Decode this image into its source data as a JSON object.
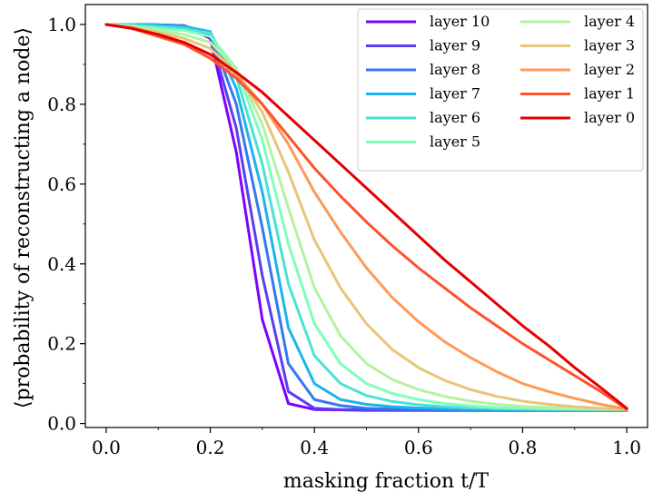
{
  "chart_data": {
    "type": "line",
    "title": "",
    "xlabel": "masking fraction t/T",
    "ylabel": "⟨probability of reconstructing a node⟩",
    "xlim": [
      -0.04,
      1.04
    ],
    "ylim": [
      -0.01,
      1.05
    ],
    "xticks": [
      "0.0",
      "0.2",
      "0.4",
      "0.6",
      "0.8",
      "1.0"
    ],
    "yticks": [
      "0.0",
      "0.2",
      "0.4",
      "0.6",
      "0.8",
      "1.0"
    ],
    "grid": false,
    "legend_position": "top-right",
    "x": [
      0.0,
      0.05,
      0.1,
      0.15,
      0.2,
      0.25,
      0.3,
      0.35,
      0.4,
      0.45,
      0.5,
      0.55,
      0.6,
      0.65,
      0.7,
      0.75,
      0.8,
      0.85,
      0.9,
      0.95,
      1.0
    ],
    "series": [
      {
        "name": "layer 10",
        "color": "#7f00ff",
        "values": [
          1.0,
          1.0,
          0.999,
          0.997,
          0.965,
          0.68,
          0.26,
          0.05,
          0.035,
          0.034,
          0.033,
          0.033,
          0.033,
          0.033,
          0.033,
          0.033,
          0.033,
          0.033,
          0.033,
          0.033,
          0.033
        ]
      },
      {
        "name": "layer 9",
        "color": "#5a3df4",
        "values": [
          1.0,
          1.0,
          0.999,
          0.997,
          0.972,
          0.74,
          0.37,
          0.08,
          0.038,
          0.035,
          0.034,
          0.033,
          0.033,
          0.033,
          0.033,
          0.033,
          0.033,
          0.033,
          0.033,
          0.033,
          0.033
        ]
      },
      {
        "name": "layer 8",
        "color": "#3478f0",
        "values": [
          1.0,
          1.0,
          0.999,
          0.996,
          0.978,
          0.8,
          0.49,
          0.15,
          0.06,
          0.045,
          0.038,
          0.036,
          0.035,
          0.035,
          0.034,
          0.034,
          0.034,
          0.034,
          0.034,
          0.034,
          0.034
        ]
      },
      {
        "name": "layer 7",
        "color": "#1ab6e8",
        "values": [
          1.0,
          1.0,
          0.998,
          0.995,
          0.982,
          0.84,
          0.58,
          0.24,
          0.1,
          0.06,
          0.048,
          0.042,
          0.039,
          0.037,
          0.036,
          0.035,
          0.035,
          0.035,
          0.035,
          0.035,
          0.035
        ]
      },
      {
        "name": "layer 6",
        "color": "#4ae2d4",
        "values": [
          1.0,
          0.998,
          0.995,
          0.99,
          0.978,
          0.87,
          0.65,
          0.35,
          0.17,
          0.1,
          0.07,
          0.055,
          0.047,
          0.042,
          0.039,
          0.037,
          0.036,
          0.035,
          0.035,
          0.035,
          0.035
        ]
      },
      {
        "name": "layer 5",
        "color": "#80fdbd",
        "values": [
          1.0,
          0.997,
          0.99,
          0.985,
          0.97,
          0.89,
          0.71,
          0.45,
          0.25,
          0.15,
          0.1,
          0.075,
          0.06,
          0.05,
          0.044,
          0.04,
          0.038,
          0.037,
          0.036,
          0.035,
          0.035
        ]
      },
      {
        "name": "layer 4",
        "color": "#b4f2a0",
        "values": [
          1.0,
          0.995,
          0.985,
          0.975,
          0.955,
          0.89,
          0.75,
          0.54,
          0.34,
          0.22,
          0.15,
          0.11,
          0.085,
          0.068,
          0.056,
          0.048,
          0.043,
          0.04,
          0.038,
          0.036,
          0.035
        ]
      },
      {
        "name": "layer 3",
        "color": "#e6c678",
        "values": [
          1.0,
          0.993,
          0.98,
          0.965,
          0.94,
          0.88,
          0.78,
          0.63,
          0.46,
          0.34,
          0.25,
          0.185,
          0.14,
          0.108,
          0.085,
          0.068,
          0.056,
          0.048,
          0.042,
          0.038,
          0.035
        ]
      },
      {
        "name": "layer 2",
        "color": "#fe9a58",
        "values": [
          1.0,
          0.992,
          0.975,
          0.955,
          0.925,
          0.875,
          0.8,
          0.7,
          0.58,
          0.48,
          0.39,
          0.315,
          0.255,
          0.205,
          0.165,
          0.13,
          0.1,
          0.08,
          0.063,
          0.048,
          0.036
        ]
      },
      {
        "name": "layer 1",
        "color": "#fe522a",
        "values": [
          1.0,
          0.99,
          0.97,
          0.95,
          0.915,
          0.865,
          0.8,
          0.72,
          0.64,
          0.57,
          0.505,
          0.445,
          0.39,
          0.34,
          0.29,
          0.245,
          0.2,
          0.16,
          0.12,
          0.08,
          0.036
        ]
      },
      {
        "name": "layer 0",
        "color": "#e30000",
        "values": [
          1.0,
          0.99,
          0.975,
          0.955,
          0.925,
          0.88,
          0.83,
          0.77,
          0.71,
          0.65,
          0.59,
          0.53,
          0.47,
          0.41,
          0.355,
          0.3,
          0.245,
          0.195,
          0.14,
          0.09,
          0.038
        ]
      }
    ]
  }
}
